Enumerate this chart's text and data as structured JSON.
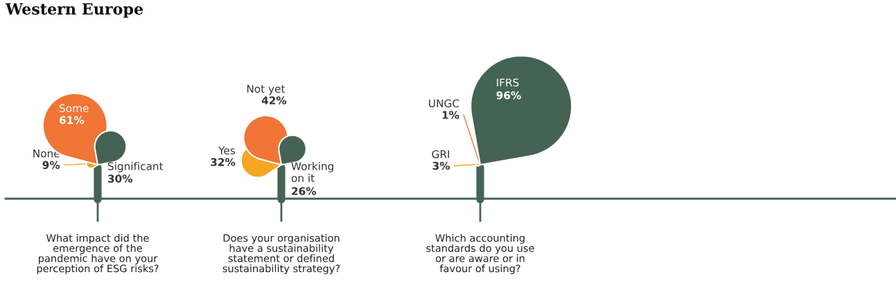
{
  "chart_data": [
    {
      "type": "other",
      "title": "Western Europe",
      "categories": [
        "None",
        "Some",
        "Significant"
      ],
      "values": [
        9,
        61,
        30
      ],
      "value_labels": [
        "9%",
        "61%",
        "30%"
      ],
      "colors": [
        "#f5a623",
        "#f07536",
        "#446354"
      ],
      "xlabel": "What impact did the\nemergence of the\npandemic have on your\nperception of ESG risks?"
    },
    {
      "type": "other",
      "categories": [
        "Yes",
        "Not yet",
        "Working\non it"
      ],
      "values": [
        32,
        42,
        26
      ],
      "value_labels": [
        "32%",
        "42%",
        "26%"
      ],
      "colors": [
        "#f5a623",
        "#f07536",
        "#446354"
      ],
      "xlabel": "Does your organisation\nhave a sustainability\nstatement or defined\nsustainability strategy?"
    },
    {
      "type": "other",
      "categories": [
        "GRI",
        "UNGC",
        "IFRS"
      ],
      "values": [
        3,
        1,
        96
      ],
      "value_labels": [
        "3%",
        "1%",
        "96%"
      ],
      "colors": [
        "#f5a623",
        "#f07536",
        "#446354"
      ],
      "xlabel": "Which accounting\nstandards do you use\nor are aware or in\nfavour of using?"
    }
  ]
}
